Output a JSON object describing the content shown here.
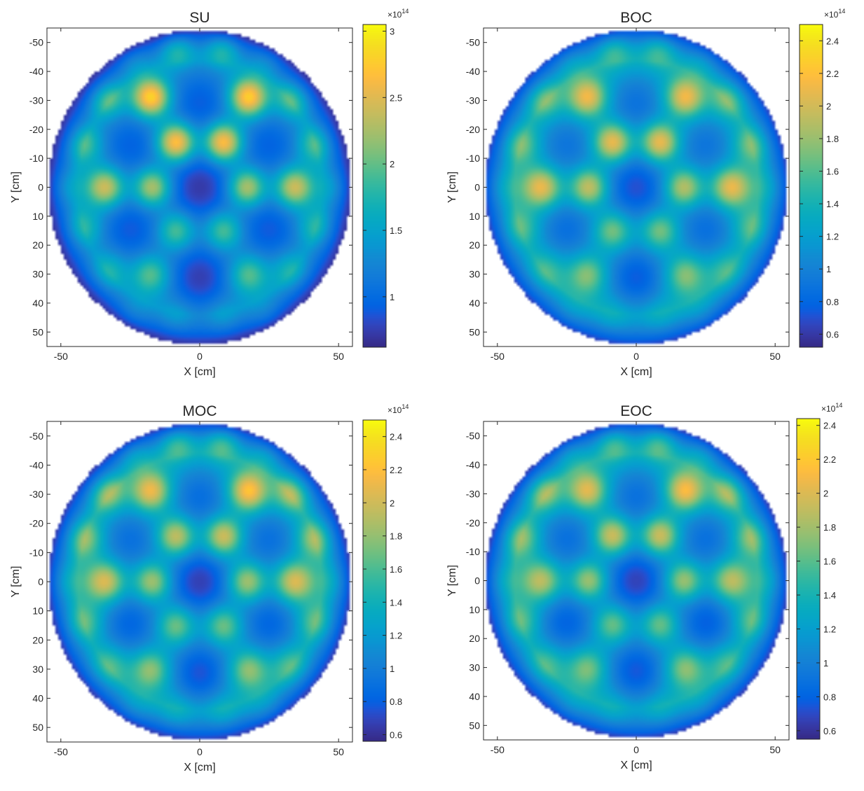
{
  "chart_data": [
    {
      "type": "heatmap",
      "title": "SU",
      "xlabel": "X [cm]",
      "ylabel": "Y [cm]",
      "xlim": [
        -55,
        55
      ],
      "ylim": [
        -55,
        55
      ],
      "y_reversed": true,
      "xticks": [
        -50,
        0,
        50
      ],
      "yticks": [
        -50,
        -40,
        -30,
        -20,
        -10,
        0,
        10,
        20,
        30,
        40,
        50
      ],
      "colorbar": {
        "min": 0.62,
        "max": 3.05,
        "ticks": [
          1,
          1.5,
          2,
          2.5,
          3
        ],
        "exponent_label": "×10",
        "exponent": "14"
      },
      "colormap": "parula",
      "region": "circle",
      "field": {
        "background": 1.42,
        "center_dip": 0.28,
        "edge_floor": 0.65,
        "hot_spots": [
          {
            "x": -17.5,
            "y": -31,
            "v": 2.98
          },
          {
            "x": 17.5,
            "y": -31,
            "v": 2.95
          },
          {
            "x": -8.5,
            "y": -15.5,
            "v": 3.02
          },
          {
            "x": 8.5,
            "y": -15.5,
            "v": 3.0
          },
          {
            "x": -34,
            "y": 0,
            "v": 2.6
          },
          {
            "x": -17,
            "y": 0,
            "v": 2.6
          },
          {
            "x": 17,
            "y": 0,
            "v": 2.6
          },
          {
            "x": 34,
            "y": 0,
            "v": 2.6
          },
          {
            "x": -8.5,
            "y": -50,
            "v": 2.55
          },
          {
            "x": 8.5,
            "y": -50,
            "v": 2.55
          },
          {
            "x": -8.5,
            "y": 15,
            "v": 2.25
          },
          {
            "x": 8.5,
            "y": 15,
            "v": 2.25
          },
          {
            "x": -17.5,
            "y": 30,
            "v": 2.15
          },
          {
            "x": 17.5,
            "y": 30,
            "v": 2.15
          },
          {
            "x": -34,
            "y": -31,
            "v": 2.2
          },
          {
            "x": 34,
            "y": -31,
            "v": 2.2
          },
          {
            "x": -42,
            "y": -15,
            "v": 2.1
          },
          {
            "x": 42,
            "y": -15,
            "v": 2.1
          },
          {
            "x": -42,
            "y": 14,
            "v": 1.95
          },
          {
            "x": 42,
            "y": 14,
            "v": 1.95
          },
          {
            "x": -33,
            "y": 29,
            "v": 1.9
          },
          {
            "x": 33,
            "y": 29,
            "v": 1.9
          },
          {
            "x": -25,
            "y": -46,
            "v": 2.0
          },
          {
            "x": 25,
            "y": -46,
            "v": 2.0
          },
          {
            "x": -25,
            "y": 46,
            "v": 1.8
          },
          {
            "x": 25,
            "y": 46,
            "v": 1.8
          },
          {
            "x": -8.5,
            "y": 46,
            "v": 1.7
          },
          {
            "x": 8.5,
            "y": 46,
            "v": 1.7
          },
          {
            "x": -50,
            "y": 0,
            "v": 1.85
          },
          {
            "x": 50,
            "y": 0,
            "v": 1.85
          }
        ],
        "cold_spots": [
          {
            "x": 0,
            "y": -30,
            "v": 1.02
          },
          {
            "x": -26,
            "y": -15,
            "v": 1.05
          },
          {
            "x": 26,
            "y": -15,
            "v": 1.05
          },
          {
            "x": 0,
            "y": 0,
            "v": 1.0
          },
          {
            "x": -26,
            "y": 15,
            "v": 1.0
          },
          {
            "x": 26,
            "y": 15,
            "v": 1.0
          },
          {
            "x": 0,
            "y": 32,
            "v": 0.85
          }
        ]
      }
    },
    {
      "type": "heatmap",
      "title": "BOC",
      "xlabel": "X [cm]",
      "ylabel": "Y [cm]",
      "xlim": [
        -55,
        55
      ],
      "ylim": [
        -55,
        55
      ],
      "y_reversed": true,
      "xticks": [
        -50,
        0,
        50
      ],
      "yticks": [
        -50,
        -40,
        -30,
        -20,
        -10,
        0,
        10,
        20,
        30,
        40,
        50
      ],
      "colorbar": {
        "min": 0.52,
        "max": 2.5,
        "ticks": [
          0.6,
          0.8,
          1,
          1.2,
          1.4,
          1.6,
          1.8,
          2,
          2.2,
          2.4
        ],
        "exponent_label": "×10",
        "exponent": "14"
      },
      "colormap": "parula",
      "region": "circle",
      "field": {
        "background": 1.42,
        "center_dip": 0.28,
        "edge_floor": 0.62,
        "hot_spots": [
          {
            "x": -17.5,
            "y": -31,
            "v": 2.3
          },
          {
            "x": 17.5,
            "y": -31,
            "v": 2.3
          },
          {
            "x": -8.5,
            "y": -15.5,
            "v": 2.45
          },
          {
            "x": 8.5,
            "y": -15.5,
            "v": 2.45
          },
          {
            "x": -34,
            "y": 0,
            "v": 2.3
          },
          {
            "x": -17,
            "y": 0,
            "v": 2.3
          },
          {
            "x": 17,
            "y": 0,
            "v": 2.25
          },
          {
            "x": 34,
            "y": 0,
            "v": 2.3
          },
          {
            "x": -8.5,
            "y": -50,
            "v": 2.15
          },
          {
            "x": 8.5,
            "y": -50,
            "v": 2.15
          },
          {
            "x": -8.5,
            "y": 15,
            "v": 2.05
          },
          {
            "x": 8.5,
            "y": 15,
            "v": 2.05
          },
          {
            "x": -17.5,
            "y": 30,
            "v": 1.95
          },
          {
            "x": 17.5,
            "y": 30,
            "v": 1.95
          },
          {
            "x": -34,
            "y": -31,
            "v": 1.95
          },
          {
            "x": 34,
            "y": -31,
            "v": 1.95
          },
          {
            "x": -42,
            "y": -15,
            "v": 1.9
          },
          {
            "x": 42,
            "y": -15,
            "v": 1.9
          },
          {
            "x": -42,
            "y": 14,
            "v": 1.8
          },
          {
            "x": 42,
            "y": 14,
            "v": 1.8
          },
          {
            "x": -33,
            "y": 29,
            "v": 1.75
          },
          {
            "x": 33,
            "y": 29,
            "v": 1.75
          },
          {
            "x": -25,
            "y": -46,
            "v": 1.8
          },
          {
            "x": 25,
            "y": -46,
            "v": 1.8
          },
          {
            "x": -25,
            "y": 46,
            "v": 1.65
          },
          {
            "x": 25,
            "y": 46,
            "v": 1.65
          },
          {
            "x": -8.5,
            "y": 46,
            "v": 1.6
          },
          {
            "x": 8.5,
            "y": 46,
            "v": 1.6
          },
          {
            "x": -50,
            "y": 0,
            "v": 1.7
          },
          {
            "x": 50,
            "y": 0,
            "v": 1.7
          }
        ],
        "cold_spots": [
          {
            "x": 0,
            "y": -30,
            "v": 1.0
          },
          {
            "x": -26,
            "y": -15,
            "v": 1.02
          },
          {
            "x": 26,
            "y": -15,
            "v": 1.02
          },
          {
            "x": 0,
            "y": 0,
            "v": 0.98
          },
          {
            "x": -26,
            "y": 15,
            "v": 0.98
          },
          {
            "x": 26,
            "y": 15,
            "v": 0.98
          },
          {
            "x": 0,
            "y": 32,
            "v": 0.85
          }
        ]
      }
    },
    {
      "type": "heatmap",
      "title": "MOC",
      "xlabel": "X [cm]",
      "ylabel": "Y [cm]",
      "xlim": [
        -55,
        55
      ],
      "ylim": [
        -55,
        55
      ],
      "y_reversed": true,
      "xticks": [
        -50,
        0,
        50
      ],
      "yticks": [
        -50,
        -40,
        -30,
        -20,
        -10,
        0,
        10,
        20,
        30,
        40,
        50
      ],
      "colorbar": {
        "min": 0.56,
        "max": 2.5,
        "ticks": [
          0.6,
          0.8,
          1,
          1.2,
          1.4,
          1.6,
          1.8,
          2,
          2.2,
          2.4
        ],
        "exponent_label": "×10",
        "exponent": "14"
      },
      "colormap": "parula",
      "region": "circle",
      "field": {
        "background": 1.42,
        "center_dip": 0.28,
        "edge_floor": 0.62,
        "hot_spots": [
          {
            "x": -17.5,
            "y": -31,
            "v": 2.3
          },
          {
            "x": 17.5,
            "y": -31,
            "v": 2.4
          },
          {
            "x": -8.5,
            "y": -15.5,
            "v": 2.3
          },
          {
            "x": 8.5,
            "y": -15.5,
            "v": 2.35
          },
          {
            "x": -34,
            "y": 0,
            "v": 2.25
          },
          {
            "x": -17,
            "y": 0,
            "v": 2.2
          },
          {
            "x": 17,
            "y": 0,
            "v": 2.2
          },
          {
            "x": 34,
            "y": 0,
            "v": 2.25
          },
          {
            "x": -8.5,
            "y": -50,
            "v": 2.25
          },
          {
            "x": 8.5,
            "y": -50,
            "v": 2.3
          },
          {
            "x": -8.5,
            "y": 15,
            "v": 2.05
          },
          {
            "x": 8.5,
            "y": 15,
            "v": 2.05
          },
          {
            "x": -17.5,
            "y": 30,
            "v": 2.0
          },
          {
            "x": 17.5,
            "y": 30,
            "v": 2.0
          },
          {
            "x": -34,
            "y": -31,
            "v": 2.1
          },
          {
            "x": 34,
            "y": -31,
            "v": 2.15
          },
          {
            "x": -42,
            "y": -15,
            "v": 2.0
          },
          {
            "x": 42,
            "y": -15,
            "v": 2.05
          },
          {
            "x": -42,
            "y": 14,
            "v": 1.85
          },
          {
            "x": 42,
            "y": 14,
            "v": 1.85
          },
          {
            "x": -33,
            "y": 29,
            "v": 1.8
          },
          {
            "x": 33,
            "y": 29,
            "v": 1.8
          },
          {
            "x": -25,
            "y": -46,
            "v": 1.95
          },
          {
            "x": 25,
            "y": -46,
            "v": 1.95
          },
          {
            "x": -25,
            "y": 46,
            "v": 1.7
          },
          {
            "x": 25,
            "y": 46,
            "v": 1.7
          },
          {
            "x": -8.5,
            "y": 46,
            "v": 1.65
          },
          {
            "x": 8.5,
            "y": 46,
            "v": 1.65
          },
          {
            "x": -50,
            "y": 0,
            "v": 1.75
          },
          {
            "x": 50,
            "y": 0,
            "v": 1.75
          }
        ],
        "cold_spots": [
          {
            "x": 0,
            "y": -30,
            "v": 1.0
          },
          {
            "x": -26,
            "y": -15,
            "v": 1.02
          },
          {
            "x": 26,
            "y": -15,
            "v": 1.02
          },
          {
            "x": 0,
            "y": 0,
            "v": 0.95
          },
          {
            "x": -26,
            "y": 15,
            "v": 0.95
          },
          {
            "x": 26,
            "y": 15,
            "v": 0.95
          },
          {
            "x": 0,
            "y": 32,
            "v": 0.85
          }
        ]
      }
    },
    {
      "type": "heatmap",
      "title": "EOC",
      "xlabel": "X [cm]",
      "ylabel": "Y [cm]",
      "xlim": [
        -55,
        55
      ],
      "ylim": [
        -55,
        55
      ],
      "y_reversed": true,
      "xticks": [
        -50,
        0,
        50
      ],
      "yticks": [
        -50,
        -40,
        -30,
        -20,
        -10,
        0,
        10,
        20,
        30,
        40,
        50
      ],
      "colorbar": {
        "min": 0.55,
        "max": 2.44,
        "ticks": [
          0.6,
          0.8,
          1,
          1.2,
          1.4,
          1.6,
          1.8,
          2,
          2.2,
          2.4
        ],
        "exponent_label": "×10",
        "exponent": "14"
      },
      "colormap": "parula",
      "region": "circle",
      "field": {
        "background": 1.42,
        "center_dip": 0.28,
        "edge_floor": 0.62,
        "hot_spots": [
          {
            "x": -17.5,
            "y": -31,
            "v": 2.2
          },
          {
            "x": 17.5,
            "y": -31,
            "v": 2.3
          },
          {
            "x": -8.5,
            "y": -15.5,
            "v": 2.3
          },
          {
            "x": 8.5,
            "y": -15.5,
            "v": 2.3
          },
          {
            "x": -34,
            "y": 0,
            "v": 2.1
          },
          {
            "x": -17,
            "y": 0,
            "v": 2.15
          },
          {
            "x": 17,
            "y": 0,
            "v": 2.15
          },
          {
            "x": 34,
            "y": 0,
            "v": 2.1
          },
          {
            "x": -8.5,
            "y": -50,
            "v": 2.2
          },
          {
            "x": 8.5,
            "y": -50,
            "v": 2.25
          },
          {
            "x": -8.5,
            "y": 15,
            "v": 2.0
          },
          {
            "x": 8.5,
            "y": 15,
            "v": 2.0
          },
          {
            "x": -17.5,
            "y": 30,
            "v": 1.9
          },
          {
            "x": 17.5,
            "y": 30,
            "v": 1.95
          },
          {
            "x": -34,
            "y": -31,
            "v": 2.05
          },
          {
            "x": 34,
            "y": -31,
            "v": 2.05
          },
          {
            "x": -42,
            "y": -15,
            "v": 1.95
          },
          {
            "x": 42,
            "y": -15,
            "v": 1.95
          },
          {
            "x": -42,
            "y": 14,
            "v": 1.8
          },
          {
            "x": 42,
            "y": 14,
            "v": 1.8
          },
          {
            "x": -33,
            "y": 29,
            "v": 1.75
          },
          {
            "x": 33,
            "y": 29,
            "v": 1.75
          },
          {
            "x": -25,
            "y": -46,
            "v": 1.9
          },
          {
            "x": 25,
            "y": -46,
            "v": 1.9
          },
          {
            "x": -25,
            "y": 46,
            "v": 1.65
          },
          {
            "x": 25,
            "y": 46,
            "v": 1.65
          },
          {
            "x": -8.5,
            "y": 46,
            "v": 1.6
          },
          {
            "x": 8.5,
            "y": 46,
            "v": 1.6
          },
          {
            "x": -50,
            "y": 0,
            "v": 1.7
          },
          {
            "x": 50,
            "y": 0,
            "v": 1.7
          }
        ],
        "cold_spots": [
          {
            "x": 0,
            "y": -30,
            "v": 1.0
          },
          {
            "x": -26,
            "y": -15,
            "v": 1.0
          },
          {
            "x": 26,
            "y": -15,
            "v": 1.0
          },
          {
            "x": 0,
            "y": 0,
            "v": 0.95
          },
          {
            "x": -26,
            "y": 15,
            "v": 0.92
          },
          {
            "x": 26,
            "y": 15,
            "v": 0.9
          },
          {
            "x": 0,
            "y": 32,
            "v": 0.85
          }
        ]
      }
    }
  ]
}
